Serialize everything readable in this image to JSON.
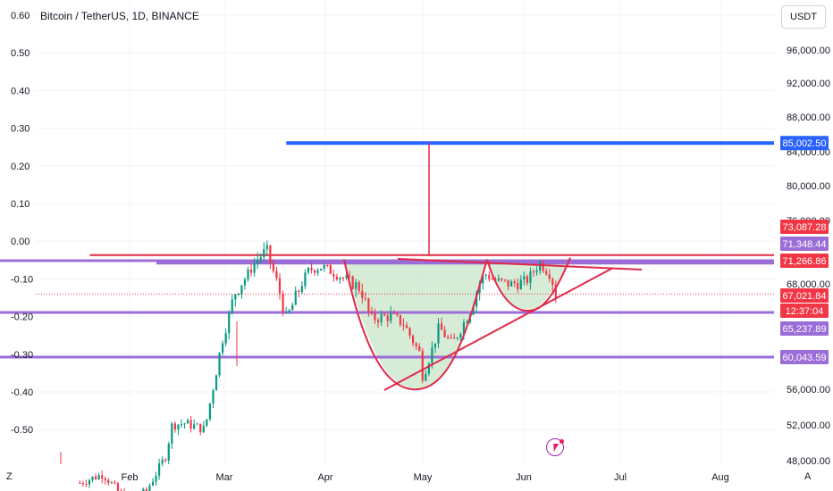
{
  "title": "Bitcoin / TetherUS, 1D, BINANCE",
  "unit_label": "USDT",
  "corner_left": "Z",
  "corner_right": "A",
  "colors": {
    "candle_up": "#089981",
    "candle_down": "#f23645",
    "target_line": "#2962ff",
    "resistance_line": "#e0294a",
    "purple_level": "#9b6dd6",
    "cup_fill": "#c8e6c9",
    "current_price": "#f23645"
  },
  "chart_data": {
    "type": "candlestick",
    "left_axis_ticks": [
      "0.60",
      "0.50",
      "0.40",
      "0.30",
      "0.20",
      "0.10",
      "0.00",
      "-0.10",
      "-0.20",
      "-0.30",
      "-0.40",
      "-0.50"
    ],
    "right_axis_ticks": [
      "96,000.00",
      "92,000.00",
      "88,000.00",
      "84,000.00",
      "80,000.00",
      "76,000.00",
      "68,000.00",
      "56,000.00",
      "52,000.00",
      "48,000.00"
    ],
    "x_ticks": [
      "Feb",
      "Mar",
      "Apr",
      "May",
      "Jun",
      "Jul",
      "Aug"
    ],
    "ylim": [
      47500,
      100000
    ],
    "price_labels": [
      {
        "text": "85,002.50",
        "value": 85002.5,
        "color": "#2962ff"
      },
      {
        "text": "73,087.28",
        "value": 73087.28,
        "color": "#f23645"
      },
      {
        "text": "71,348.44",
        "value": 71348.44,
        "color": "#9b6dd6"
      },
      {
        "text": "71,266.86",
        "value": 71266.86,
        "color": "#f23645"
      },
      {
        "text": "67,021.84",
        "value": 67021.84,
        "color": "#f23645"
      },
      {
        "text": "12:37:04",
        "value": null,
        "color": "#f23645"
      },
      {
        "text": "65,237.89",
        "value": 65237.89,
        "color": "#9b6dd6"
      },
      {
        "text": "60,043.59",
        "value": 60043.59,
        "color": "#9b6dd6"
      }
    ],
    "levels": [
      {
        "value": 85002.5,
        "color": "#2962ff",
        "from": "Mar 20",
        "to": "end"
      },
      {
        "value": 72000,
        "color": "#e0294a",
        "from": "Jan 20",
        "to": "end"
      },
      {
        "value": 71348.44,
        "color": "#9b6dd6",
        "from": "start",
        "to": "end"
      },
      {
        "value": 65237.89,
        "color": "#9b6dd6",
        "from": "start",
        "to": "end"
      },
      {
        "value": 60043.59,
        "color": "#9b6dd6",
        "from": "start",
        "to": "end"
      }
    ],
    "close_path": [
      [
        "Jan 17",
        45500
      ],
      [
        "Jan 24",
        46500
      ],
      [
        "Jan 31",
        43500
      ],
      [
        "Feb 06",
        44500
      ],
      [
        "Feb 12",
        48500
      ],
      [
        "Feb 14",
        52000
      ],
      [
        "Feb 18",
        52200
      ],
      [
        "Feb 24",
        51500
      ],
      [
        "Feb 27",
        57000
      ],
      [
        "Feb 29",
        61500
      ],
      [
        "Mar 04",
        67000
      ],
      [
        "Mar 07",
        68500
      ],
      [
        "Mar 11",
        71500
      ],
      [
        "Mar 14",
        72500
      ],
      [
        "Mar 17",
        68500
      ],
      [
        "Mar 20",
        64500
      ],
      [
        "Mar 24",
        67500
      ],
      [
        "Mar 27",
        70000
      ],
      [
        "Mar 31",
        70500
      ],
      [
        "Apr 06",
        69000
      ],
      [
        "Apr 12",
        67500
      ],
      [
        "Apr 15",
        64500
      ],
      [
        "Apr 21",
        64800
      ],
      [
        "Apr 25",
        64000
      ],
      [
        "Apr 30",
        60500
      ],
      [
        "May 01",
        57500
      ],
      [
        "May 06",
        63500
      ],
      [
        "May 10",
        61500
      ],
      [
        "May 15",
        65000
      ],
      [
        "May 20",
        69500
      ],
      [
        "May 23",
        68500
      ],
      [
        "May 28",
        68000
      ],
      [
        "Jun 02",
        68500
      ],
      [
        "Jun 06",
        71000
      ],
      [
        "Jun 09",
        69500
      ],
      [
        "Jun 11",
        67000
      ]
    ]
  }
}
